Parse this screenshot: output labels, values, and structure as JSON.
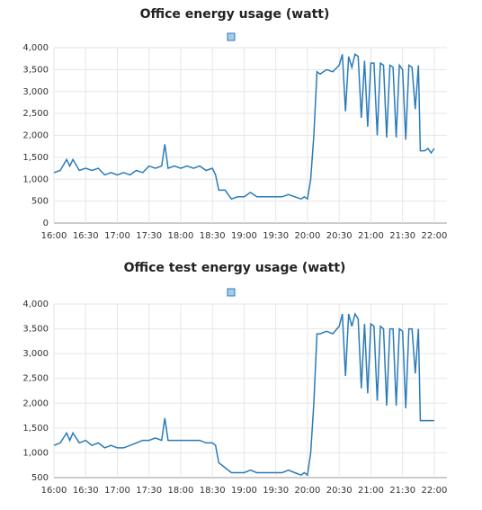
{
  "chart_data": [
    {
      "type": "line",
      "title": "Office energy usage (watt)",
      "xlim": [
        16,
        22.2
      ],
      "ylim": [
        0,
        4000
      ],
      "grid": true,
      "xticks": [
        {
          "value": 16,
          "label": "16:00"
        },
        {
          "value": 16.5,
          "label": "16:30"
        },
        {
          "value": 17,
          "label": "17:00"
        },
        {
          "value": 17.5,
          "label": "17:30"
        },
        {
          "value": 18,
          "label": "18:00"
        },
        {
          "value": 18.5,
          "label": "18:30"
        },
        {
          "value": 19,
          "label": "19:00"
        },
        {
          "value": 19.5,
          "label": "19:30"
        },
        {
          "value": 20,
          "label": "20:00"
        },
        {
          "value": 20.5,
          "label": "20:30"
        },
        {
          "value": 21,
          "label": "21:00"
        },
        {
          "value": 21.5,
          "label": "21:30"
        },
        {
          "value": 22,
          "label": "22:00"
        }
      ],
      "yticks": [
        0,
        500,
        {
          "value": 1000,
          "label": "1,000"
        },
        {
          "value": 1500,
          "label": "1,500"
        },
        {
          "value": 2000,
          "label": "2,000"
        },
        {
          "value": 2500,
          "label": "2,500"
        },
        {
          "value": 3000,
          "label": "3,000"
        },
        {
          "value": 3500,
          "label": "3,500"
        },
        {
          "value": 4000,
          "label": "4,000"
        }
      ],
      "x": [
        16.0,
        16.1,
        16.2,
        16.25,
        16.3,
        16.4,
        16.5,
        16.6,
        16.7,
        16.8,
        16.9,
        17.0,
        17.1,
        17.2,
        17.3,
        17.4,
        17.5,
        17.6,
        17.7,
        17.75,
        17.8,
        17.9,
        18.0,
        18.1,
        18.2,
        18.3,
        18.4,
        18.5,
        18.55,
        18.6,
        18.7,
        18.8,
        18.9,
        19.0,
        19.1,
        19.2,
        19.3,
        19.4,
        19.5,
        19.6,
        19.7,
        19.8,
        19.9,
        19.95,
        20.0,
        20.05,
        20.1,
        20.15,
        20.2,
        20.3,
        20.4,
        20.5,
        20.55,
        20.6,
        20.65,
        20.7,
        20.75,
        20.8,
        20.85,
        20.9,
        20.95,
        21.0,
        21.05,
        21.1,
        21.15,
        21.2,
        21.25,
        21.3,
        21.35,
        21.4,
        21.45,
        21.5,
        21.55,
        21.6,
        21.65,
        21.7,
        21.75,
        21.78,
        21.85,
        21.9,
        21.95,
        22.0
      ],
      "series": [
        {
          "color": "#2b7bb9",
          "values": [
            1150,
            1200,
            1450,
            1300,
            1450,
            1200,
            1250,
            1200,
            1250,
            1100,
            1150,
            1100,
            1150,
            1100,
            1200,
            1150,
            1300,
            1250,
            1300,
            1800,
            1250,
            1300,
            1250,
            1300,
            1250,
            1300,
            1200,
            1250,
            1100,
            750,
            750,
            550,
            600,
            600,
            700,
            600,
            600,
            600,
            600,
            600,
            650,
            600,
            550,
            600,
            550,
            1000,
            2000,
            3450,
            3400,
            3500,
            3450,
            3600,
            3850,
            2550,
            3800,
            3550,
            3850,
            3800,
            2400,
            3700,
            2200,
            3650,
            3650,
            2000,
            3650,
            3600,
            1950,
            3600,
            3550,
            1950,
            3600,
            3500,
            1900,
            3600,
            3550,
            2600,
            3600,
            1650,
            1650,
            1700,
            1600,
            1700
          ]
        }
      ]
    },
    {
      "type": "line",
      "title": "Office test energy usage (watt)",
      "xlim": [
        16,
        22.2
      ],
      "ylim": [
        500,
        4000
      ],
      "grid": true,
      "xticks": [
        {
          "value": 16,
          "label": "16:00"
        },
        {
          "value": 16.5,
          "label": "16:30"
        },
        {
          "value": 17,
          "label": "17:00"
        },
        {
          "value": 17.5,
          "label": "17:30"
        },
        {
          "value": 18,
          "label": "18:00"
        },
        {
          "value": 18.5,
          "label": "18:30"
        },
        {
          "value": 19,
          "label": "19:00"
        },
        {
          "value": 19.5,
          "label": "19:30"
        },
        {
          "value": 20,
          "label": "20:00"
        },
        {
          "value": 20.5,
          "label": "20:30"
        },
        {
          "value": 21,
          "label": "21:00"
        },
        {
          "value": 21.5,
          "label": "21:30"
        },
        {
          "value": 22,
          "label": "22:00"
        }
      ],
      "yticks": [
        500,
        {
          "value": 1000,
          "label": "1,000"
        },
        {
          "value": 1500,
          "label": "1,500"
        },
        {
          "value": 2000,
          "label": "2,000"
        },
        {
          "value": 2500,
          "label": "2,500"
        },
        {
          "value": 3000,
          "label": "3,000"
        },
        {
          "value": 3500,
          "label": "3,500"
        },
        {
          "value": 4000,
          "label": "4,000"
        }
      ],
      "x": [
        16.0,
        16.1,
        16.2,
        16.25,
        16.3,
        16.4,
        16.5,
        16.6,
        16.7,
        16.8,
        16.9,
        17.0,
        17.1,
        17.2,
        17.3,
        17.4,
        17.5,
        17.6,
        17.7,
        17.75,
        17.8,
        17.9,
        18.0,
        18.1,
        18.2,
        18.3,
        18.4,
        18.5,
        18.55,
        18.6,
        18.7,
        18.8,
        18.9,
        19.0,
        19.1,
        19.2,
        19.3,
        19.4,
        19.5,
        19.6,
        19.7,
        19.8,
        19.9,
        19.95,
        20.0,
        20.05,
        20.1,
        20.15,
        20.2,
        20.3,
        20.4,
        20.5,
        20.55,
        20.6,
        20.65,
        20.7,
        20.75,
        20.8,
        20.85,
        20.9,
        20.95,
        21.0,
        21.05,
        21.1,
        21.15,
        21.2,
        21.25,
        21.3,
        21.35,
        21.4,
        21.45,
        21.5,
        21.55,
        21.6,
        21.65,
        21.7,
        21.75,
        21.78,
        21.85,
        21.9,
        21.95,
        22.0
      ],
      "series": [
        {
          "color": "#2b7bb9",
          "values": [
            1150,
            1200,
            1400,
            1250,
            1400,
            1200,
            1250,
            1150,
            1200,
            1100,
            1150,
            1100,
            1100,
            1150,
            1200,
            1250,
            1250,
            1300,
            1250,
            1700,
            1250,
            1250,
            1250,
            1250,
            1250,
            1250,
            1200,
            1200,
            1150,
            800,
            700,
            600,
            600,
            600,
            650,
            600,
            600,
            600,
            600,
            600,
            650,
            600,
            550,
            600,
            550,
            1000,
            2000,
            3400,
            3400,
            3450,
            3400,
            3550,
            3800,
            2550,
            3800,
            3550,
            3800,
            3700,
            2300,
            3600,
            2200,
            3600,
            3550,
            2050,
            3550,
            3500,
            1950,
            3500,
            3500,
            1950,
            3500,
            3450,
            1900,
            3500,
            3500,
            2600,
            3500,
            1650,
            1650,
            1650,
            1650,
            1650
          ]
        }
      ]
    }
  ]
}
